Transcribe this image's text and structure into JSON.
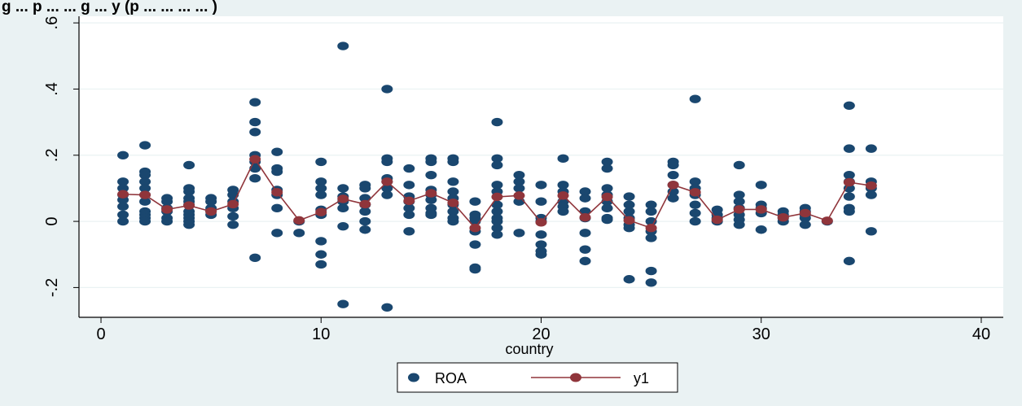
{
  "header_text": "g ...  p  ...   ...  g  ...  y (p  ...  ...  ...  ...  )",
  "chart_data": {
    "type": "scatter",
    "title": "",
    "xlabel": "country",
    "ylabel": "",
    "xlim": [
      -1,
      41
    ],
    "ylim": [
      -0.29,
      0.62
    ],
    "xticks": [
      0,
      10,
      20,
      30,
      40
    ],
    "xtick_labels": [
      "0",
      "10",
      "20",
      "30",
      "40"
    ],
    "yticks": [
      -0.2,
      0,
      0.2,
      0.4,
      0.6
    ],
    "ytick_labels": [
      "-.2",
      "0",
      ".2",
      ".4",
      ".6"
    ],
    "grid": true,
    "legend_position": "bottom",
    "colors": {
      "roa": "#1a476f",
      "y1": "#90353b",
      "plot_bg": "#ffffff",
      "outer_bg": "#eaf2f3",
      "grid": "#eaf2f3"
    },
    "series": [
      {
        "name": "ROA",
        "kind": "scatter",
        "points": [
          [
            1,
            0.2
          ],
          [
            1,
            0.12
          ],
          [
            1,
            0.1
          ],
          [
            1,
            0.08
          ],
          [
            1,
            0.065
          ],
          [
            1,
            0.045
          ],
          [
            1,
            0.02
          ],
          [
            1,
            0.0
          ],
          [
            2,
            0.23
          ],
          [
            2,
            0.15
          ],
          [
            2,
            0.14
          ],
          [
            2,
            0.12
          ],
          [
            2,
            0.1
          ],
          [
            2,
            0.08
          ],
          [
            2,
            0.06
          ],
          [
            2,
            0.03
          ],
          [
            2,
            0.02
          ],
          [
            2,
            0.01
          ],
          [
            2,
            0.0
          ],
          [
            3,
            0.07
          ],
          [
            3,
            0.06
          ],
          [
            3,
            0.04
          ],
          [
            3,
            0.03
          ],
          [
            3,
            0.01
          ],
          [
            3,
            0.0
          ],
          [
            4,
            0.17
          ],
          [
            4,
            0.1
          ],
          [
            4,
            0.09
          ],
          [
            4,
            0.07
          ],
          [
            4,
            0.06
          ],
          [
            4,
            0.05
          ],
          [
            4,
            0.03
          ],
          [
            4,
            0.02
          ],
          [
            4,
            0.01
          ],
          [
            4,
            0.0
          ],
          [
            4,
            -0.01
          ],
          [
            5,
            0.07
          ],
          [
            5,
            0.06
          ],
          [
            5,
            0.04
          ],
          [
            5,
            0.03
          ],
          [
            5,
            0.02
          ],
          [
            6,
            0.095
          ],
          [
            6,
            0.08
          ],
          [
            6,
            0.06
          ],
          [
            6,
            0.04
          ],
          [
            6,
            0.015
          ],
          [
            6,
            -0.01
          ],
          [
            7,
            0.36
          ],
          [
            7,
            0.3
          ],
          [
            7,
            0.27
          ],
          [
            7,
            0.2
          ],
          [
            7,
            0.18
          ],
          [
            7,
            0.16
          ],
          [
            7,
            0.13
          ],
          [
            7,
            -0.11
          ],
          [
            8,
            0.21
          ],
          [
            8,
            0.16
          ],
          [
            8,
            0.15
          ],
          [
            8,
            0.095
          ],
          [
            8,
            0.08
          ],
          [
            8,
            0.04
          ],
          [
            8,
            -0.035
          ],
          [
            9,
            0.0
          ],
          [
            9,
            -0.035
          ],
          [
            10,
            0.18
          ],
          [
            10,
            0.12
          ],
          [
            10,
            0.1
          ],
          [
            10,
            0.08
          ],
          [
            10,
            0.035
          ],
          [
            10,
            0.02
          ],
          [
            10,
            -0.06
          ],
          [
            10,
            -0.1
          ],
          [
            10,
            -0.13
          ],
          [
            11,
            0.53
          ],
          [
            11,
            0.1
          ],
          [
            11,
            0.075
          ],
          [
            11,
            0.06
          ],
          [
            11,
            0.04
          ],
          [
            11,
            -0.015
          ],
          [
            11,
            -0.25
          ],
          [
            12,
            0.11
          ],
          [
            12,
            0.1
          ],
          [
            12,
            0.07
          ],
          [
            12,
            0.05
          ],
          [
            12,
            0.03
          ],
          [
            12,
            0.0
          ],
          [
            12,
            -0.025
          ],
          [
            13,
            0.4
          ],
          [
            13,
            0.19
          ],
          [
            13,
            0.18
          ],
          [
            13,
            0.13
          ],
          [
            13,
            0.12
          ],
          [
            13,
            0.1
          ],
          [
            13,
            0.08
          ],
          [
            13,
            -0.26
          ],
          [
            14,
            0.16
          ],
          [
            14,
            0.11
          ],
          [
            14,
            0.075
          ],
          [
            14,
            0.06
          ],
          [
            14,
            0.04
          ],
          [
            14,
            0.02
          ],
          [
            14,
            -0.03
          ],
          [
            15,
            0.19
          ],
          [
            15,
            0.18
          ],
          [
            15,
            0.14
          ],
          [
            15,
            0.095
          ],
          [
            15,
            0.08
          ],
          [
            15,
            0.065
          ],
          [
            15,
            0.04
          ],
          [
            15,
            0.025
          ],
          [
            15,
            0.02
          ],
          [
            16,
            0.19
          ],
          [
            16,
            0.18
          ],
          [
            16,
            0.12
          ],
          [
            16,
            0.09
          ],
          [
            16,
            0.07
          ],
          [
            16,
            0.05
          ],
          [
            16,
            0.03
          ],
          [
            16,
            0.01
          ],
          [
            16,
            0.0
          ],
          [
            17,
            0.06
          ],
          [
            17,
            0.02
          ],
          [
            17,
            0.01
          ],
          [
            17,
            0.0
          ],
          [
            17,
            -0.03
          ],
          [
            17,
            -0.07
          ],
          [
            17,
            -0.14
          ],
          [
            17,
            -0.145
          ],
          [
            18,
            0.3
          ],
          [
            18,
            0.19
          ],
          [
            18,
            0.17
          ],
          [
            18,
            0.11
          ],
          [
            18,
            0.09
          ],
          [
            18,
            0.05
          ],
          [
            18,
            0.03
          ],
          [
            18,
            0.01
          ],
          [
            18,
            0.0
          ],
          [
            18,
            -0.02
          ],
          [
            18,
            -0.04
          ],
          [
            19,
            0.14
          ],
          [
            19,
            0.12
          ],
          [
            19,
            0.1
          ],
          [
            19,
            0.06
          ],
          [
            19,
            -0.035
          ],
          [
            20,
            0.11
          ],
          [
            20,
            0.06
          ],
          [
            20,
            0.01
          ],
          [
            20,
            0.0
          ],
          [
            20,
            -0.04
          ],
          [
            20,
            -0.07
          ],
          [
            20,
            -0.09
          ],
          [
            20,
            -0.1
          ],
          [
            21,
            0.19
          ],
          [
            21,
            0.11
          ],
          [
            21,
            0.09
          ],
          [
            21,
            0.06
          ],
          [
            21,
            0.045
          ],
          [
            21,
            0.03
          ],
          [
            22,
            0.09
          ],
          [
            22,
            0.07
          ],
          [
            22,
            0.03
          ],
          [
            22,
            0.01
          ],
          [
            22,
            -0.035
          ],
          [
            22,
            -0.085
          ],
          [
            22,
            -0.12
          ],
          [
            23,
            0.18
          ],
          [
            23,
            0.16
          ],
          [
            23,
            0.1
          ],
          [
            23,
            0.08
          ],
          [
            23,
            0.06
          ],
          [
            23,
            0.04
          ],
          [
            23,
            0.01
          ],
          [
            23,
            0.005
          ],
          [
            24,
            0.075
          ],
          [
            24,
            0.05
          ],
          [
            24,
            0.03
          ],
          [
            24,
            0.01
          ],
          [
            24,
            -0.01
          ],
          [
            24,
            -0.02
          ],
          [
            24,
            -0.175
          ],
          [
            25,
            0.05
          ],
          [
            25,
            0.03
          ],
          [
            25,
            0.0
          ],
          [
            25,
            -0.03
          ],
          [
            25,
            -0.05
          ],
          [
            25,
            -0.15
          ],
          [
            25,
            -0.185
          ],
          [
            26,
            0.18
          ],
          [
            26,
            0.17
          ],
          [
            26,
            0.14
          ],
          [
            26,
            0.11
          ],
          [
            26,
            0.09
          ],
          [
            26,
            0.07
          ],
          [
            27,
            0.37
          ],
          [
            27,
            0.12
          ],
          [
            27,
            0.1
          ],
          [
            27,
            0.08
          ],
          [
            27,
            0.05
          ],
          [
            27,
            0.025
          ],
          [
            27,
            0.0
          ],
          [
            28,
            0.035
          ],
          [
            28,
            0.02
          ],
          [
            28,
            0.01
          ],
          [
            28,
            0.0
          ],
          [
            29,
            0.17
          ],
          [
            29,
            0.08
          ],
          [
            29,
            0.06
          ],
          [
            29,
            0.04
          ],
          [
            29,
            0.02
          ],
          [
            29,
            0.005
          ],
          [
            29,
            -0.01
          ],
          [
            30,
            0.11
          ],
          [
            30,
            0.05
          ],
          [
            30,
            0.04
          ],
          [
            30,
            0.025
          ],
          [
            30,
            -0.025
          ],
          [
            31,
            0.03
          ],
          [
            31,
            0.02
          ],
          [
            31,
            0.01
          ],
          [
            31,
            0.0
          ],
          [
            32,
            0.04
          ],
          [
            32,
            0.03
          ],
          [
            32,
            0.02
          ],
          [
            32,
            0.01
          ],
          [
            32,
            -0.01
          ],
          [
            33,
            0.0
          ],
          [
            34,
            0.35
          ],
          [
            34,
            0.22
          ],
          [
            34,
            0.14
          ],
          [
            34,
            0.12
          ],
          [
            34,
            0.1
          ],
          [
            34,
            0.075
          ],
          [
            34,
            0.04
          ],
          [
            34,
            0.03
          ],
          [
            34,
            -0.12
          ],
          [
            35,
            0.22
          ],
          [
            35,
            0.12
          ],
          [
            35,
            0.1
          ],
          [
            35,
            0.08
          ],
          [
            35,
            -0.03
          ]
        ]
      },
      {
        "name": "y1",
        "kind": "line",
        "x": [
          1,
          2,
          3,
          4,
          5,
          6,
          7,
          8,
          9,
          10,
          11,
          12,
          13,
          14,
          15,
          16,
          17,
          18,
          19,
          20,
          21,
          22,
          23,
          24,
          25,
          26,
          27,
          28,
          29,
          30,
          31,
          32,
          33,
          34,
          35
        ],
        "values": [
          0.082,
          0.08,
          0.036,
          0.048,
          0.03,
          0.052,
          0.188,
          0.088,
          0.003,
          0.028,
          0.068,
          0.052,
          0.12,
          0.062,
          0.085,
          0.056,
          -0.02,
          0.074,
          0.078,
          -0.003,
          0.078,
          0.012,
          0.074,
          0.003,
          -0.02,
          0.11,
          0.088,
          0.005,
          0.036,
          0.036,
          0.012,
          0.025,
          0.002,
          0.118,
          0.108
        ]
      }
    ]
  }
}
